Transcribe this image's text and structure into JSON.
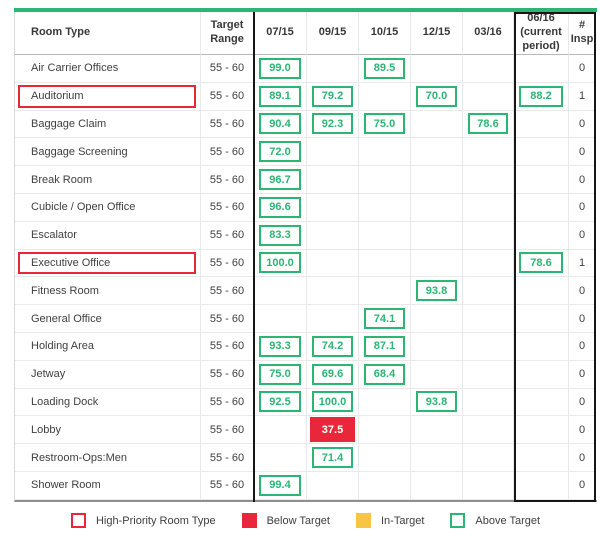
{
  "colors": {
    "above_target": "#2bb673",
    "below_target": "#e8283a",
    "in_target": "#f6c544",
    "high_priority_outline": "#e8283a"
  },
  "chart_data": {
    "type": "table",
    "columns": [
      "Room Type",
      "Target Range",
      "07/15",
      "09/15",
      "10/15",
      "12/15",
      "03/16",
      "06/16 (current period)",
      "# Insp"
    ],
    "periods": [
      "07/15",
      "09/15",
      "10/15",
      "12/15",
      "03/16",
      "06/16 (current period)"
    ],
    "current_period": "06/16",
    "target_range": "55 - 60",
    "rows": [
      {
        "room": "Air Carrier Offices",
        "high_priority": false,
        "target_range": "55 - 60",
        "values": [
          {
            "v": 99.0,
            "status": "above"
          },
          null,
          {
            "v": 89.5,
            "status": "above"
          },
          null,
          null,
          null
        ],
        "inspections": 0
      },
      {
        "room": "Auditorium",
        "high_priority": true,
        "target_range": "55 - 60",
        "values": [
          {
            "v": 89.1,
            "status": "above"
          },
          {
            "v": 79.2,
            "status": "above"
          },
          null,
          {
            "v": 70.0,
            "status": "above"
          },
          null,
          {
            "v": 88.2,
            "status": "above"
          }
        ],
        "inspections": 1
      },
      {
        "room": "Baggage Claim",
        "high_priority": false,
        "target_range": "55 - 60",
        "values": [
          {
            "v": 90.4,
            "status": "above"
          },
          {
            "v": 92.3,
            "status": "above"
          },
          {
            "v": 75.0,
            "status": "above"
          },
          null,
          {
            "v": 78.6,
            "status": "above"
          },
          null
        ],
        "inspections": 0
      },
      {
        "room": "Baggage Screening",
        "high_priority": false,
        "target_range": "55 - 60",
        "values": [
          {
            "v": 72.0,
            "status": "above"
          },
          null,
          null,
          null,
          null,
          null
        ],
        "inspections": 0
      },
      {
        "room": "Break Room",
        "high_priority": false,
        "target_range": "55 - 60",
        "values": [
          {
            "v": 96.7,
            "status": "above"
          },
          null,
          null,
          null,
          null,
          null
        ],
        "inspections": 0
      },
      {
        "room": "Cubicle / Open Office",
        "high_priority": false,
        "target_range": "55 - 60",
        "values": [
          {
            "v": 96.6,
            "status": "above"
          },
          null,
          null,
          null,
          null,
          null
        ],
        "inspections": 0
      },
      {
        "room": "Escalator",
        "high_priority": false,
        "target_range": "55 - 60",
        "values": [
          {
            "v": 83.3,
            "status": "above"
          },
          null,
          null,
          null,
          null,
          null
        ],
        "inspections": 0
      },
      {
        "room": "Executive Office",
        "high_priority": true,
        "target_range": "55 - 60",
        "values": [
          {
            "v": 100.0,
            "status": "above"
          },
          null,
          null,
          null,
          null,
          {
            "v": 78.6,
            "status": "above"
          }
        ],
        "inspections": 1
      },
      {
        "room": "Fitness Room",
        "high_priority": false,
        "target_range": "55 - 60",
        "values": [
          null,
          null,
          null,
          {
            "v": 93.8,
            "status": "above"
          },
          null,
          null
        ],
        "inspections": 0
      },
      {
        "room": "General Office",
        "high_priority": false,
        "target_range": "55 - 60",
        "values": [
          null,
          null,
          {
            "v": 74.1,
            "status": "above"
          },
          null,
          null,
          null
        ],
        "inspections": 0
      },
      {
        "room": "Holding Area",
        "high_priority": false,
        "target_range": "55 - 60",
        "values": [
          {
            "v": 93.3,
            "status": "above"
          },
          {
            "v": 74.2,
            "status": "above"
          },
          {
            "v": 87.1,
            "status": "above"
          },
          null,
          null,
          null
        ],
        "inspections": 0
      },
      {
        "room": "Jetway",
        "high_priority": false,
        "target_range": "55 - 60",
        "values": [
          {
            "v": 75.0,
            "status": "above"
          },
          {
            "v": 69.6,
            "status": "above"
          },
          {
            "v": 68.4,
            "status": "above"
          },
          null,
          null,
          null
        ],
        "inspections": 0
      },
      {
        "room": "Loading Dock",
        "high_priority": false,
        "target_range": "55 - 60",
        "values": [
          {
            "v": 92.5,
            "status": "above"
          },
          {
            "v": 100.0,
            "status": "above"
          },
          null,
          {
            "v": 93.8,
            "status": "above"
          },
          null,
          null
        ],
        "inspections": 0
      },
      {
        "room": "Lobby",
        "high_priority": false,
        "target_range": "55 - 60",
        "values": [
          null,
          {
            "v": 37.5,
            "status": "below"
          },
          null,
          null,
          null,
          null
        ],
        "inspections": 0
      },
      {
        "room": "Restroom-Ops:Men",
        "high_priority": false,
        "target_range": "55 - 60",
        "values": [
          null,
          {
            "v": 71.4,
            "status": "above"
          },
          null,
          null,
          null,
          null
        ],
        "inspections": 0
      },
      {
        "room": "Shower Room",
        "high_priority": false,
        "target_range": "55 - 60",
        "values": [
          {
            "v": 99.4,
            "status": "above"
          },
          null,
          null,
          null,
          null,
          null
        ],
        "inspections": 0
      }
    ]
  },
  "legend": {
    "items": [
      {
        "swatch": "outline-red",
        "label": "High-Priority Room Type"
      },
      {
        "swatch": "fill-red",
        "label": "Below Target"
      },
      {
        "swatch": "fill-yellow",
        "label": "In-Target"
      },
      {
        "swatch": "outline-green",
        "label": "Above Target"
      }
    ]
  }
}
